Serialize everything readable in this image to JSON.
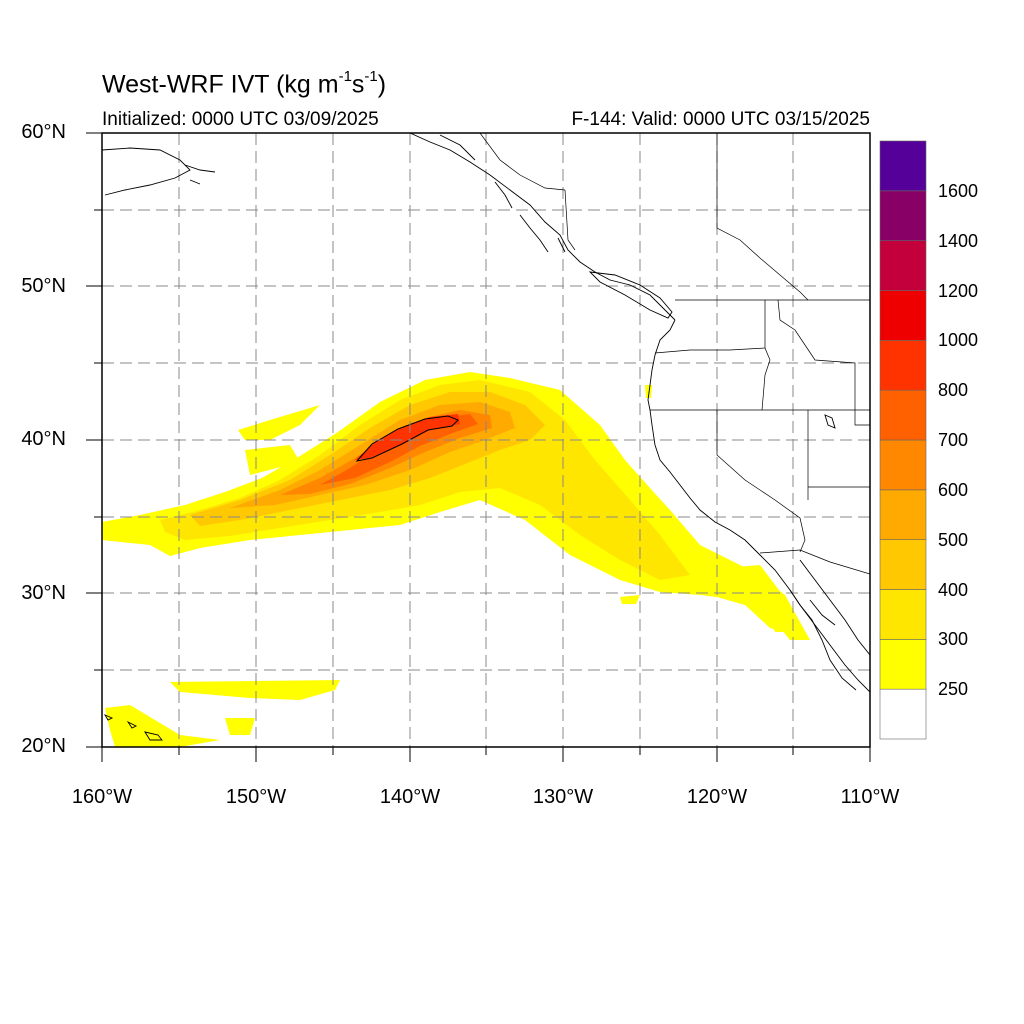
{
  "title": {
    "main": "West-WRF IVT (kg m",
    "sup1": "-1",
    "mid": "s",
    "sup2": "-1",
    "end": ")"
  },
  "subtitle_left": "Initialized: 0000 UTC 03/09/2025",
  "subtitle_right": "F-144: Valid: 0000 UTC 03/15/2025",
  "lat_labels": [
    "60°N",
    "50°N",
    "40°N",
    "30°N",
    "20°N"
  ],
  "lon_labels": [
    "160°W",
    "150°W",
    "140°W",
    "130°W",
    "120°W",
    "110°W"
  ],
  "colorbar": {
    "labels": [
      "1600",
      "1400",
      "1200",
      "1000",
      "800",
      "700",
      "600",
      "500",
      "400",
      "300",
      "250"
    ],
    "colors": [
      "#ffffff",
      "#ffff00",
      "#ffe600",
      "#ffc800",
      "#ffaa00",
      "#ff8800",
      "#ff6000",
      "#ff3300",
      "#ee0000",
      "#c4003c",
      "#880066",
      "#550099"
    ]
  },
  "map": {
    "lat_range": [
      20,
      60
    ],
    "lon_range": [
      -160,
      -110
    ],
    "contour_level": 1000
  }
}
